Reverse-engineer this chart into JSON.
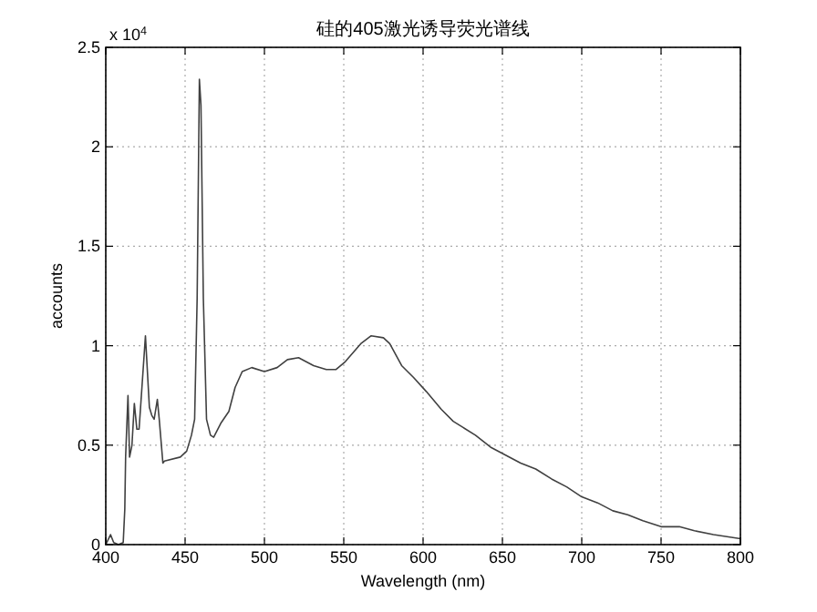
{
  "chart_data": {
    "type": "line",
    "title": "硅的405激光诱导荧光谱线",
    "xlabel": "Wavelength (nm)",
    "ylabel": "accounts",
    "annotations": [
      "x 10$^{4}$"
    ],
    "xlim": [
      400,
      800
    ],
    "xticks": [
      400,
      450,
      500,
      550,
      600,
      650,
      700,
      750,
      800
    ],
    "ylim": [
      0,
      2.5
    ],
    "yticks": [
      0,
      0.5,
      1,
      1.5,
      2,
      2.5
    ],
    "grid": true,
    "marker": "none",
    "line_style": "solid",
    "series": [
      {
        "color": "#404040",
        "x": [
          400,
          403,
          405,
          408,
          411,
          412,
          412.5,
          414,
          415,
          416.5,
          418,
          419.6,
          421,
          425,
          427.5,
          429,
          430.5,
          432.5,
          433.7,
          436,
          437,
          447,
          451,
          454,
          456,
          457.6,
          459,
          460,
          461.5,
          463.5,
          466,
          468,
          472.5,
          477.6,
          481.5,
          486,
          492,
          500,
          508,
          514.5,
          521.5,
          531,
          539,
          545,
          551,
          560.7,
          567.3,
          575,
          579,
          586.5,
          594,
          602,
          611.5,
          619,
          625,
          633,
          642.5,
          652,
          661.5,
          671,
          681,
          690.5,
          700,
          710,
          719.6,
          729,
          738.5,
          750,
          761.5,
          771,
          783,
          800
        ],
        "values": [
          0,
          0.05,
          0.01,
          0,
          0.01,
          0.18,
          0.44,
          0.75,
          0.44,
          0.5,
          0.71,
          0.58,
          0.58,
          1.05,
          0.69,
          0.65,
          0.63,
          0.73,
          0.63,
          0.41,
          0.42,
          0.44,
          0.47,
          0.55,
          0.63,
          1.24,
          2.34,
          2.21,
          1.24,
          0.63,
          0.55,
          0.54,
          0.61,
          0.67,
          0.79,
          0.87,
          0.89,
          0.87,
          0.89,
          0.93,
          0.94,
          0.9,
          0.88,
          0.88,
          0.92,
          1.01,
          1.05,
          1.04,
          1.01,
          0.9,
          0.84,
          0.77,
          0.68,
          0.62,
          0.59,
          0.55,
          0.49,
          0.45,
          0.41,
          0.38,
          0.33,
          0.29,
          0.24,
          0.21,
          0.17,
          0.15,
          0.12,
          0.09,
          0.09,
          0.07,
          0.05,
          0.03
        ]
      }
    ]
  }
}
